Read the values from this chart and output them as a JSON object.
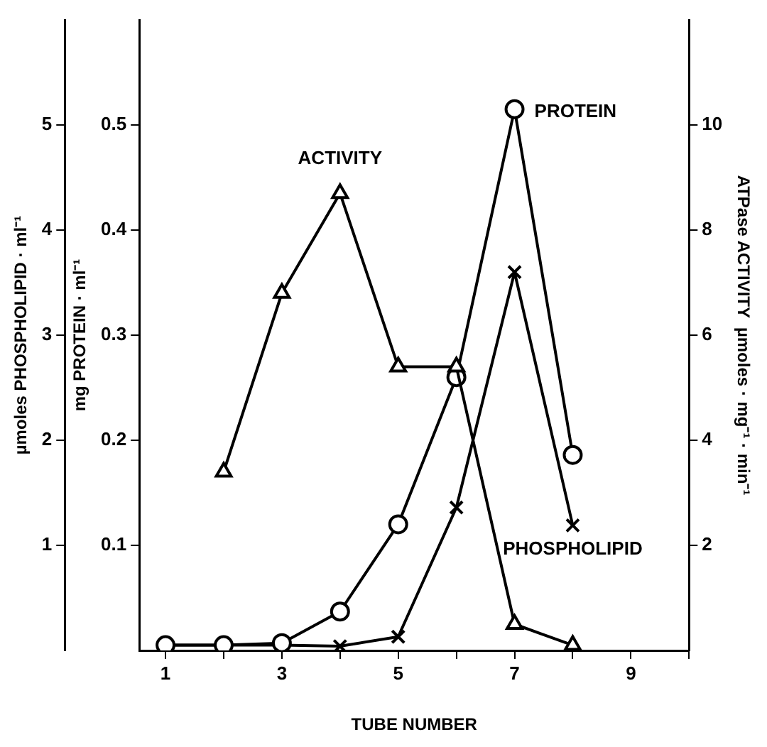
{
  "chart_data": {
    "type": "line",
    "xlabel": "TUBE NUMBER",
    "ylabel": "mg PROTEIN · ml⁻¹",
    "y2label": "ATPase ACTIVITY  µmoles · mg⁻¹ · min⁻¹",
    "y3label": "µmoles PHOSPHOLIPID · ml⁻¹",
    "x": [
      1,
      2,
      3,
      4,
      5,
      6,
      7,
      8
    ],
    "xlim": [
      0.55,
      10
    ],
    "xticks": [
      1,
      {
        "value": 2,
        "label": null
      },
      3,
      {
        "value": 4,
        "label": null
      },
      5,
      {
        "value": 6,
        "label": null
      },
      7,
      {
        "value": 8,
        "label": null
      },
      9,
      {
        "value": 10,
        "label": null
      }
    ],
    "ylim": [
      0,
      0.6
    ],
    "yticks": [
      0.1,
      0.2,
      0.3,
      0.4,
      0.5
    ],
    "y2lim": [
      0,
      12
    ],
    "y2ticks": [
      2,
      4,
      6,
      8,
      10
    ],
    "y3lim": [
      0,
      6
    ],
    "y3ticks": [
      1,
      2,
      3,
      4,
      5
    ],
    "grid": false,
    "legend": false,
    "line_style": "solid",
    "series": [
      {
        "name": "ACTIVITY",
        "color": "#000000",
        "axis": "y2",
        "marker": "triangle",
        "values": [
          null,
          3.4,
          6.8,
          8.7,
          5.4,
          5.4,
          0.5,
          0.1
        ]
      },
      {
        "name": "PROTEIN",
        "color": "#000000",
        "axis": "y",
        "marker": "circle",
        "values": [
          0.005,
          0.005,
          0.007,
          0.037,
          0.12,
          0.26,
          0.515,
          0.186
        ]
      },
      {
        "name": "PHOSPHOLIPID",
        "color": "#000000",
        "axis": "y3",
        "marker": "cross",
        "values": [
          0.05,
          0.05,
          0.05,
          0.04,
          0.13,
          1.36,
          3.6,
          1.19
        ]
      }
    ]
  }
}
